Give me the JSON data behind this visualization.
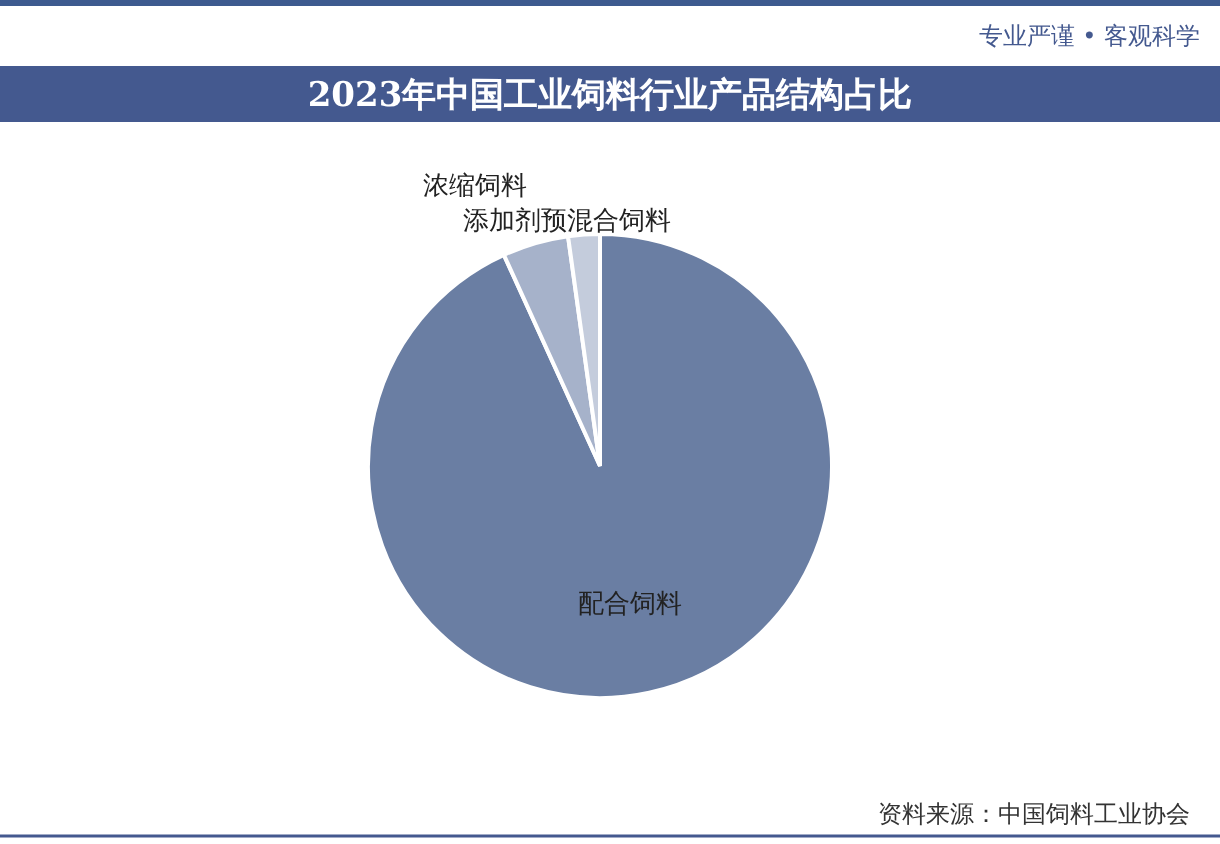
{
  "chart_data": {
    "type": "pie",
    "title": "2023年中国工业饲料行业产品结构占比",
    "categories": [
      "配合饲料",
      "浓缩饲料",
      "添加剂预混合饲料"
    ],
    "values": [
      93.2,
      4.6,
      2.2
    ],
    "colors": [
      "#6a7ea3",
      "#a6b2ca",
      "#c4ccdc"
    ],
    "annotations": [
      "专业严谨 • 客观科学",
      "资料来源：中国饲料工业协会"
    ]
  }
}
